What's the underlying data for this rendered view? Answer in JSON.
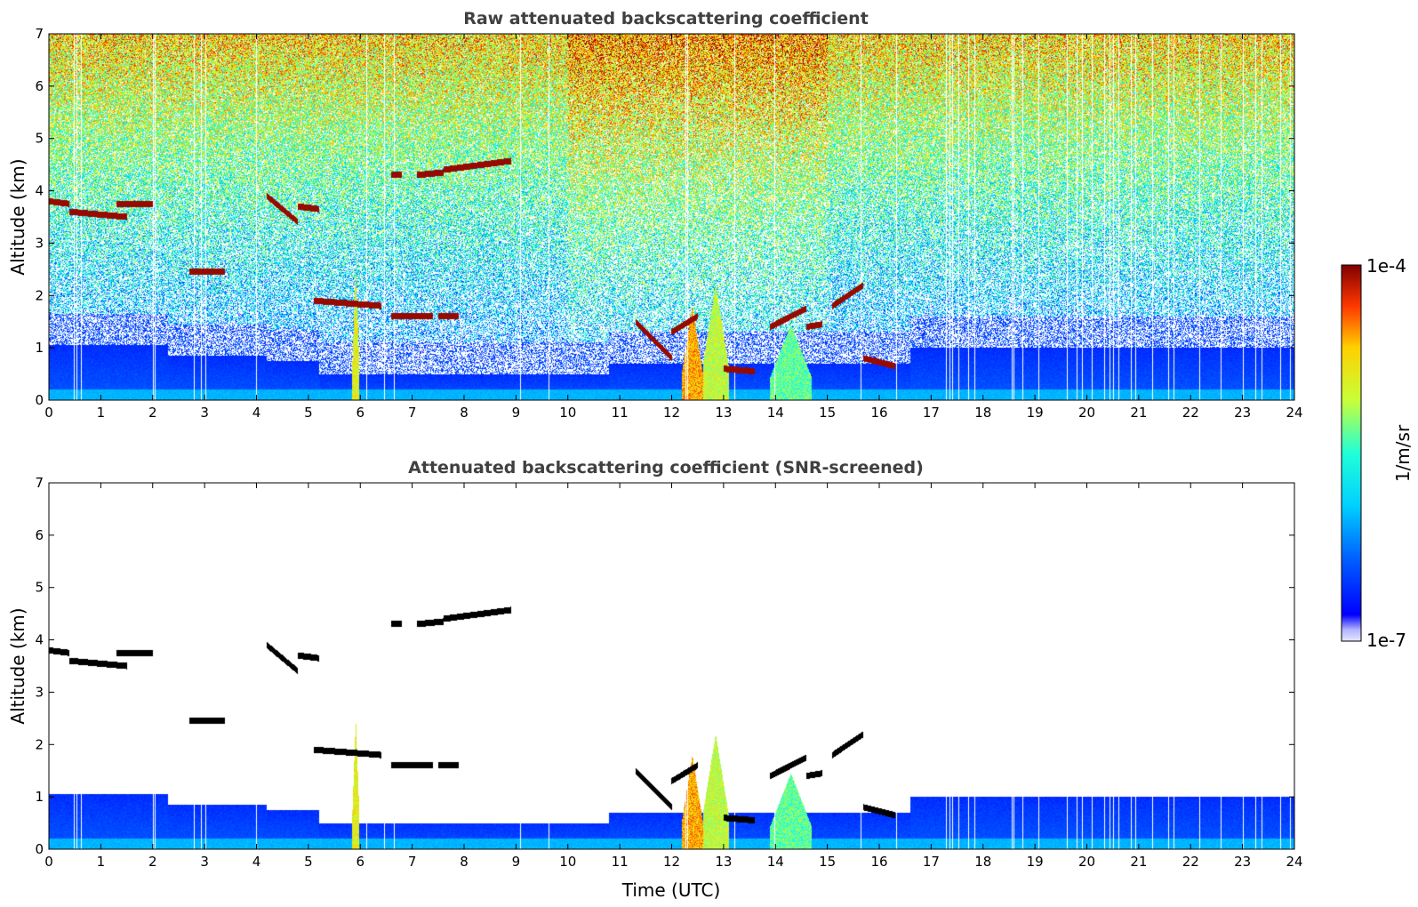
{
  "chart_data": [
    {
      "type": "heatmap",
      "title": "Raw attenuated backscattering coefficient",
      "xlabel": "",
      "ylabel": "Altitude (km)",
      "xlim": [
        0,
        24
      ],
      "ylim": [
        0,
        7
      ],
      "x_ticks": [
        "0",
        "1",
        "2",
        "3",
        "4",
        "5",
        "6",
        "7",
        "8",
        "9",
        "10",
        "11",
        "12",
        "13",
        "14",
        "15",
        "16",
        "17",
        "18",
        "19",
        "20",
        "21",
        "22",
        "23",
        "24"
      ],
      "y_ticks": [
        "0",
        "1",
        "2",
        "3",
        "4",
        "5",
        "6",
        "7"
      ],
      "screened": false
    },
    {
      "type": "heatmap",
      "title": "Attenuated backscattering coefficient (SNR-screened)",
      "xlabel": "Time (UTC)",
      "ylabel": "Altitude (km)",
      "xlim": [
        0,
        24
      ],
      "ylim": [
        0,
        7
      ],
      "x_ticks": [
        "0",
        "1",
        "2",
        "3",
        "4",
        "5",
        "6",
        "7",
        "8",
        "9",
        "10",
        "11",
        "12",
        "13",
        "14",
        "15",
        "16",
        "17",
        "18",
        "19",
        "20",
        "21",
        "22",
        "23",
        "24"
      ],
      "y_ticks": [
        "0",
        "1",
        "2",
        "3",
        "4",
        "5",
        "6",
        "7"
      ],
      "screened": true
    }
  ],
  "colorbar": {
    "label": "1/m/sr",
    "max_label": "1e-4",
    "min_label": "1e-7",
    "colormap": "jet",
    "scale": "log"
  },
  "cloud_layers": [
    {
      "t0": 0.0,
      "t1": 0.4,
      "alt0": 3.8,
      "alt1": 3.75
    },
    {
      "t0": 0.4,
      "t1": 1.5,
      "alt0": 3.6,
      "alt1": 3.5
    },
    {
      "t0": 1.3,
      "t1": 2.0,
      "alt0": 3.75,
      "alt1": 3.75
    },
    {
      "t0": 2.7,
      "t1": 3.4,
      "alt0": 2.45,
      "alt1": 2.45
    },
    {
      "t0": 4.2,
      "t1": 4.8,
      "alt0": 3.9,
      "alt1": 3.4
    },
    {
      "t0": 4.8,
      "t1": 5.2,
      "alt0": 3.7,
      "alt1": 3.65
    },
    {
      "t0": 5.1,
      "t1": 6.4,
      "alt0": 1.9,
      "alt1": 1.8
    },
    {
      "t0": 6.6,
      "t1": 7.4,
      "alt0": 1.6,
      "alt1": 1.6
    },
    {
      "t0": 7.5,
      "t1": 7.9,
      "alt0": 1.6,
      "alt1": 1.6
    },
    {
      "t0": 6.6,
      "t1": 6.8,
      "alt0": 4.3,
      "alt1": 4.3
    },
    {
      "t0": 7.1,
      "t1": 7.6,
      "alt0": 4.3,
      "alt1": 4.35
    },
    {
      "t0": 7.6,
      "t1": 8.9,
      "alt0": 4.4,
      "alt1": 4.57
    },
    {
      "t0": 11.3,
      "t1": 12.0,
      "alt0": 1.5,
      "alt1": 0.8
    },
    {
      "t0": 12.0,
      "t1": 12.5,
      "alt0": 1.3,
      "alt1": 1.6
    },
    {
      "t0": 13.0,
      "t1": 13.6,
      "alt0": 0.6,
      "alt1": 0.55
    },
    {
      "t0": 13.9,
      "t1": 14.6,
      "alt0": 1.4,
      "alt1": 1.75
    },
    {
      "t0": 14.6,
      "t1": 14.9,
      "alt0": 1.4,
      "alt1": 1.45
    },
    {
      "t0": 15.1,
      "t1": 15.7,
      "alt0": 1.8,
      "alt1": 2.2
    },
    {
      "t0": 15.7,
      "t1": 16.3,
      "alt0": 0.8,
      "alt1": 0.65
    }
  ],
  "aerosol_plumes": [
    {
      "t0": 5.85,
      "t1": 5.98,
      "top": 2.5,
      "level": 0.7
    },
    {
      "t0": 12.2,
      "t1": 12.6,
      "top": 1.8,
      "level": 0.8
    },
    {
      "t0": 12.6,
      "t1": 13.1,
      "top": 2.2,
      "level": 0.65
    },
    {
      "t0": 13.9,
      "t1": 14.7,
      "top": 1.45,
      "level": 0.55
    }
  ]
}
